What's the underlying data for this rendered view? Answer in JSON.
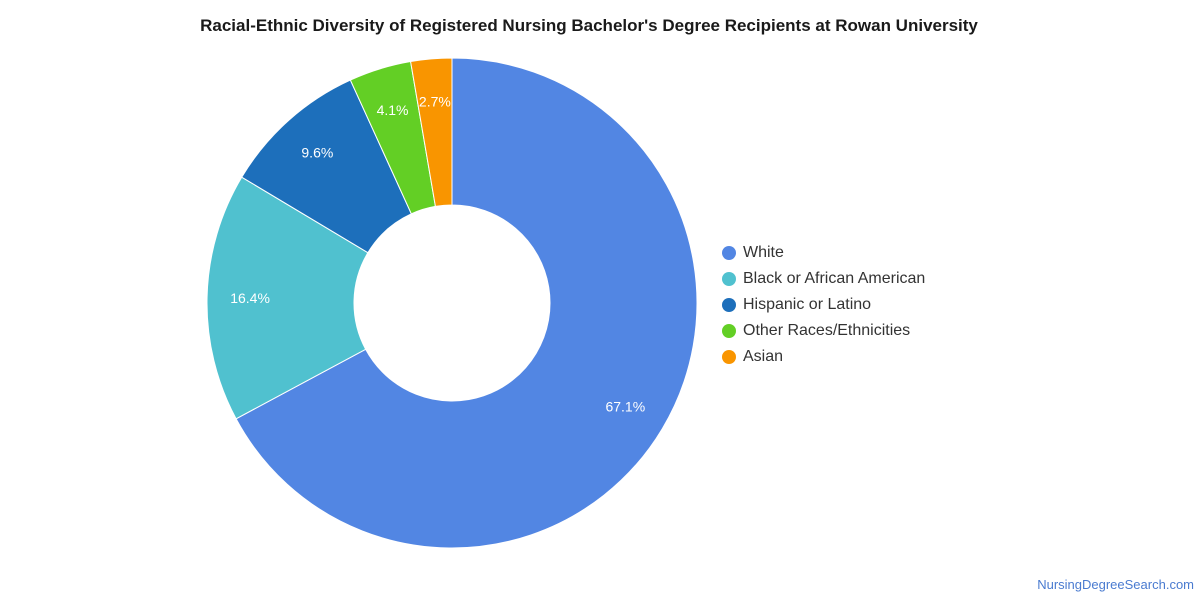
{
  "chart_data": {
    "type": "pie",
    "title": "Racial-Ethnic Diversity of Registered Nursing Bachelor's Degree Recipients at Rowan University",
    "donut": true,
    "legend_position": "right",
    "slices": [
      {
        "label": "White",
        "value": 67.1,
        "display": "67.1%",
        "color": "#5286e3"
      },
      {
        "label": "Black or African American",
        "value": 16.4,
        "display": "16.4%",
        "color": "#50c1cf"
      },
      {
        "label": "Hispanic or Latino",
        "value": 9.6,
        "display": "9.6%",
        "color": "#1d6fbb"
      },
      {
        "label": "Other Races/Ethnicities",
        "value": 4.1,
        "display": "4.1%",
        "color": "#63cf25"
      },
      {
        "label": "Asian",
        "value": 2.7,
        "display": "2.7%",
        "color": "#f99500"
      }
    ]
  },
  "footer": {
    "source": "NursingDegreeSearch.com"
  }
}
